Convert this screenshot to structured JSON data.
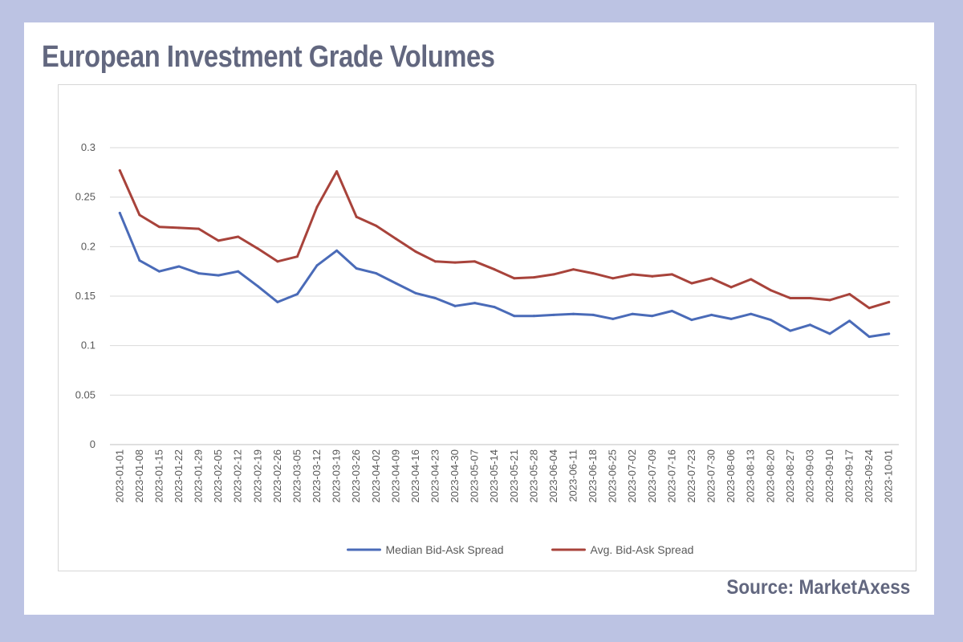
{
  "header": {
    "title": "European Investment Grade Volumes"
  },
  "footer": {
    "source": "Source: MarketAxess"
  },
  "chart_data": {
    "type": "line",
    "title": "",
    "xlabel": "",
    "ylabel": "",
    "ylim": [
      0,
      0.3
    ],
    "yticks": [
      "0",
      "0.05",
      "0.1",
      "0.15",
      "0.2",
      "0.25",
      "0.3"
    ],
    "grid": true,
    "legend_position": "bottom",
    "x": [
      "2023-01-01",
      "2023-01-08",
      "2023-01-15",
      "2023-01-22",
      "2023-01-29",
      "2023-02-05",
      "2023-02-12",
      "2023-02-19",
      "2023-02-26",
      "2023-03-05",
      "2023-03-12",
      "2023-03-19",
      "2023-03-26",
      "2023-04-02",
      "2023-04-09",
      "2023-04-16",
      "2023-04-23",
      "2023-04-30",
      "2023-05-07",
      "2023-05-14",
      "2023-05-21",
      "2023-05-28",
      "2023-06-04",
      "2023-06-11",
      "2023-06-18",
      "2023-06-25",
      "2023-07-02",
      "2023-07-09",
      "2023-07-16",
      "2023-07-23",
      "2023-07-30",
      "2023-08-06",
      "2023-08-13",
      "2023-08-20",
      "2023-08-27",
      "2023-09-03",
      "2023-09-10",
      "2023-09-17",
      "2023-09-24",
      "2023-10-01"
    ],
    "series": [
      {
        "name": "Median Bid-Ask Spread",
        "color": "#4a6bb8",
        "values": [
          0.234,
          0.186,
          0.175,
          0.18,
          0.173,
          0.171,
          0.175,
          0.16,
          0.144,
          0.152,
          0.181,
          0.196,
          0.178,
          0.173,
          0.163,
          0.153,
          0.148,
          0.14,
          0.143,
          0.139,
          0.13,
          0.13,
          0.131,
          0.132,
          0.131,
          0.127,
          0.132,
          0.13,
          0.135,
          0.126,
          0.131,
          0.127,
          0.132,
          0.126,
          0.115,
          0.121,
          0.112,
          0.125,
          0.109,
          0.112
        ]
      },
      {
        "name": "Avg. Bid-Ask Spread",
        "color": "#a8433b",
        "values": [
          0.277,
          0.232,
          0.22,
          0.219,
          0.218,
          0.206,
          0.21,
          0.198,
          0.185,
          0.19,
          0.24,
          0.276,
          0.23,
          0.221,
          0.208,
          0.195,
          0.185,
          0.184,
          0.185,
          0.177,
          0.168,
          0.169,
          0.172,
          0.177,
          0.173,
          0.168,
          0.172,
          0.17,
          0.172,
          0.163,
          0.168,
          0.159,
          0.167,
          0.156,
          0.148,
          0.148,
          0.146,
          0.152,
          0.138,
          0.144
        ]
      }
    ]
  }
}
